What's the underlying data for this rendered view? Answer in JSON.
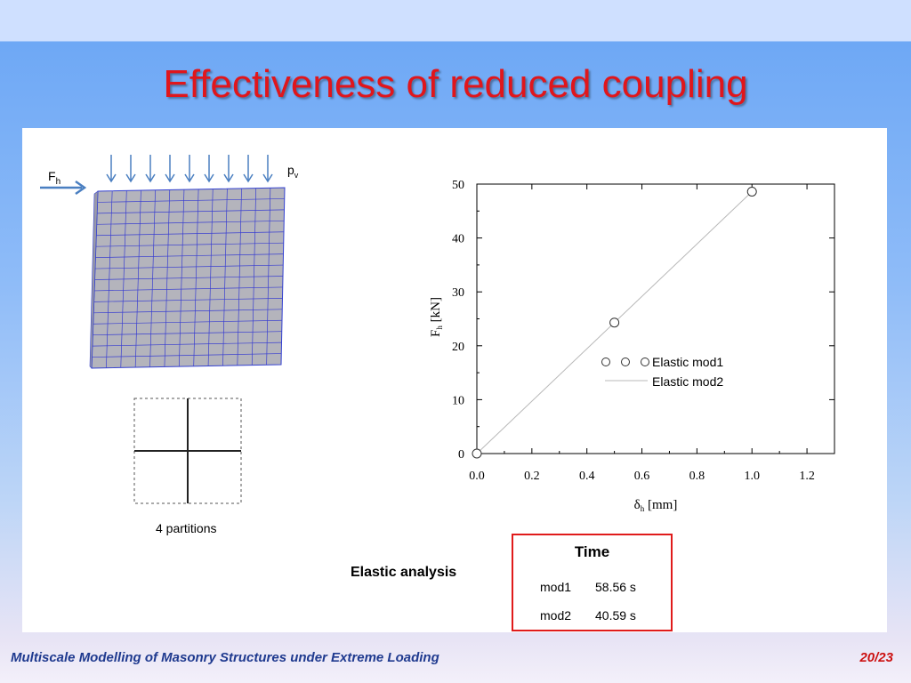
{
  "slide": {
    "title": "Effectiveness of reduced coupling",
    "footer": "Multiscale Modelling of Masonry Structures under Extreme Loading",
    "page": "20/23"
  },
  "model": {
    "force_label": "F",
    "force_sub": "h",
    "pressure_label": "p",
    "pressure_sub": "v",
    "partitions_label": "4 partitions"
  },
  "analysis_label": "Elastic analysis",
  "time_table": {
    "header": "Time",
    "rows": [
      {
        "model": "mod1",
        "time": "58.56 s"
      },
      {
        "model": "mod2",
        "time": "40.59 s"
      }
    ]
  },
  "chart_data": {
    "type": "line",
    "xlabel": "δh [mm]",
    "ylabel": "Fh [kN]",
    "xlim": [
      0,
      1.3
    ],
    "ylim": [
      0,
      50
    ],
    "xticks": [
      "0.0",
      "0.2",
      "0.4",
      "0.6",
      "0.8",
      "1.0",
      "1.2"
    ],
    "yticks": [
      "0",
      "10",
      "20",
      "30",
      "40",
      "50"
    ],
    "legend_position": "middle-right",
    "series": [
      {
        "name": "Elastic mod1",
        "style": "markers",
        "x": [
          0.0,
          0.5,
          1.0
        ],
        "y": [
          0.0,
          24.3,
          48.6
        ]
      },
      {
        "name": "Elastic mod2",
        "style": "line",
        "x": [
          0.0,
          1.0
        ],
        "y": [
          0.0,
          48.6
        ]
      }
    ]
  }
}
